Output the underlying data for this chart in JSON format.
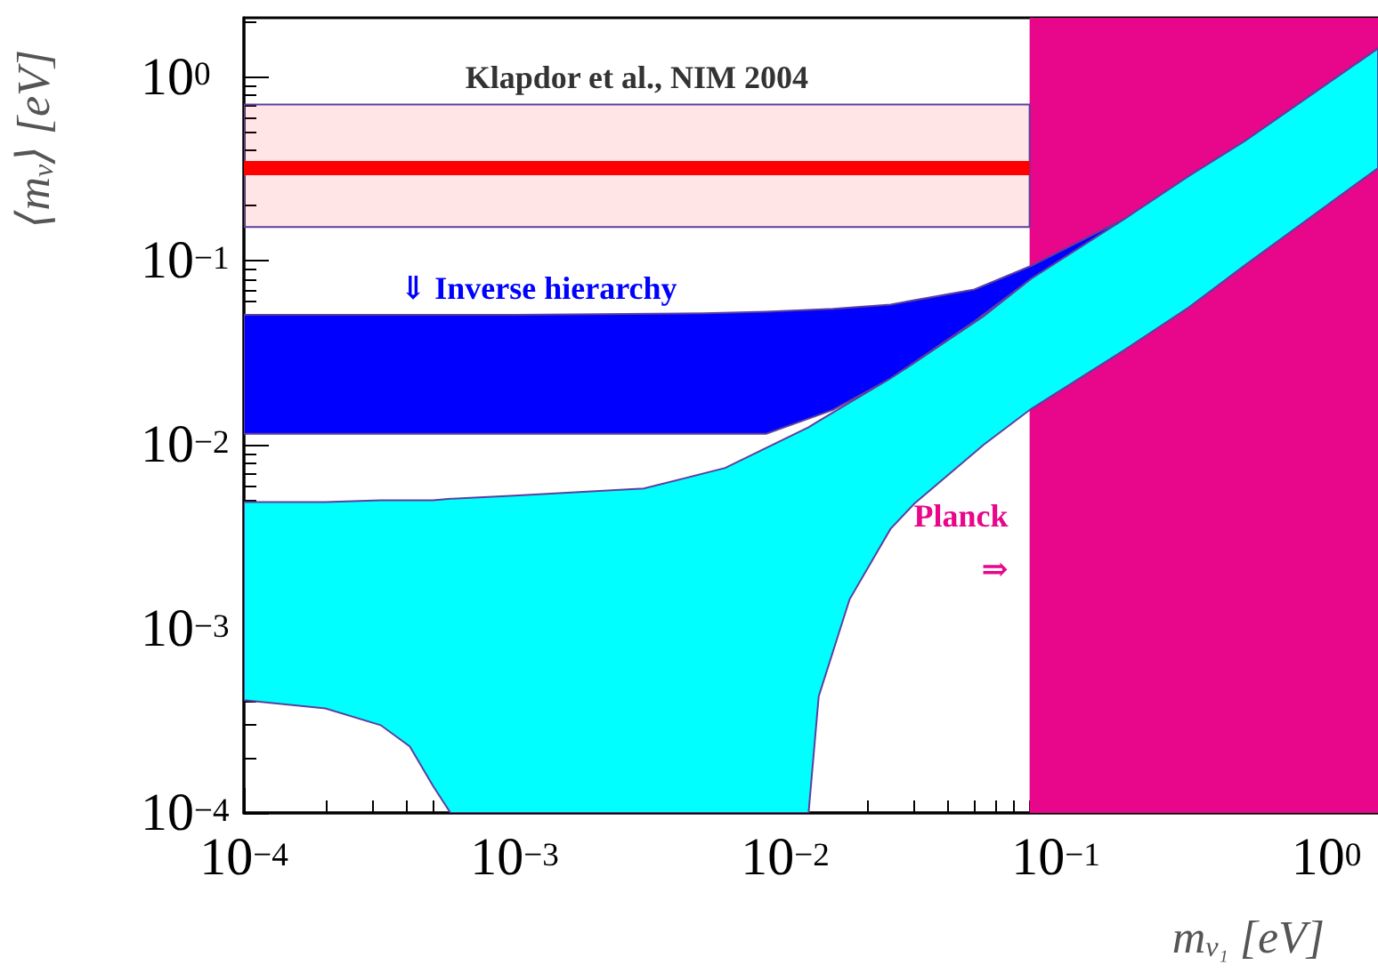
{
  "chart_data": {
    "type": "line",
    "xlabel": "m$_{ν₁}$ [eV]",
    "ylabel": "⟨m$_{ν}$⟩ [eV]",
    "log": "xy",
    "xlim": [
      0.0001,
      1.55
    ],
    "ylim": [
      0.0001,
      2.1
    ],
    "xticks": [
      {
        "value": 0.0001,
        "label": "10$^{−4}$"
      },
      {
        "value": 0.001,
        "label": "10$^{−3}$"
      },
      {
        "value": 0.01,
        "label": "10$^{−2}$"
      },
      {
        "value": 0.1,
        "label": "10$^{−1}$"
      },
      {
        "value": 1,
        "label": "10$^{0}$"
      }
    ],
    "yticks": [
      {
        "value": 0.0001,
        "label": "10$^{−4}$"
      },
      {
        "value": 0.001,
        "label": "10$^{−3}$"
      },
      {
        "value": 0.01,
        "label": "10$^{−2}$"
      },
      {
        "value": 0.1,
        "label": "10$^{−1}$"
      },
      {
        "value": 1,
        "label": "10$^{0}$"
      }
    ],
    "grid": false,
    "legend": false,
    "bands": [
      {
        "axis": "x",
        "from": 0.08,
        "to": 1.55,
        "label": "Planck ⇒",
        "color": "#e8068a"
      }
    ],
    "series": [
      {
        "name": "Klapdor et al., NIM 2004",
        "color": "#ff0000",
        "x": [
          0.0001,
          0.08
        ],
        "values": [
          0.32,
          0.32
        ],
        "lower": [
          0.153,
          0.153
        ],
        "upper": [
          0.71,
          0.71
        ]
      },
      {
        "name": "⇓ Inverse hierarchy",
        "color": "#0000ff",
        "x": [
          0.0001,
          0.001,
          0.005,
          0.0085,
          0.015,
          0.0245,
          0.05,
          0.081,
          0.18
        ],
        "values": [
          null,
          null,
          null,
          null,
          null,
          null,
          null,
          null,
          null
        ],
        "upper": [
          0.051,
          0.051,
          0.052,
          0.053,
          0.055,
          0.058,
          0.07,
          0.094,
          0.17
        ],
        "lower": [
          0.0115,
          0.0115,
          0.0115,
          0.0115,
          0.0155,
          0.023,
          0.047,
          0.08,
          0.17
        ]
      },
      {
        "color": "#00ffff",
        "x": [
          0.0001,
          0.0002,
          0.00032,
          0.00041,
          0.0005,
          0.00058,
          0.001,
          0.003,
          0.006,
          0.0122,
          0.0133,
          0.0173,
          0.0245,
          0.03,
          0.054,
          0.081,
          0.18,
          0.31,
          0.5,
          1.55
        ],
        "values": [
          null,
          null,
          null,
          null,
          null,
          null,
          null,
          null,
          null,
          null,
          null,
          null,
          null,
          null,
          null,
          null,
          null,
          null,
          null,
          null
        ],
        "upper": [
          0.0049,
          0.0049,
          0.005,
          0.005,
          0.005,
          0.0051,
          0.0053,
          0.0058,
          0.0075,
          0.0125,
          0.0135,
          0.017,
          0.023,
          0.028,
          0.05,
          0.08,
          0.17,
          0.29,
          0.45,
          1.43
        ],
        "lower": [
          0.00041,
          0.00037,
          0.0003,
          0.00023,
          0.00014,
          0.0001,
          0.0001,
          0.0001,
          0.0001,
          0.0001,
          0.00043,
          0.00145,
          0.0035,
          0.0048,
          0.01,
          0.0157,
          0.033,
          0.056,
          0.095,
          0.32
        ]
      }
    ]
  }
}
